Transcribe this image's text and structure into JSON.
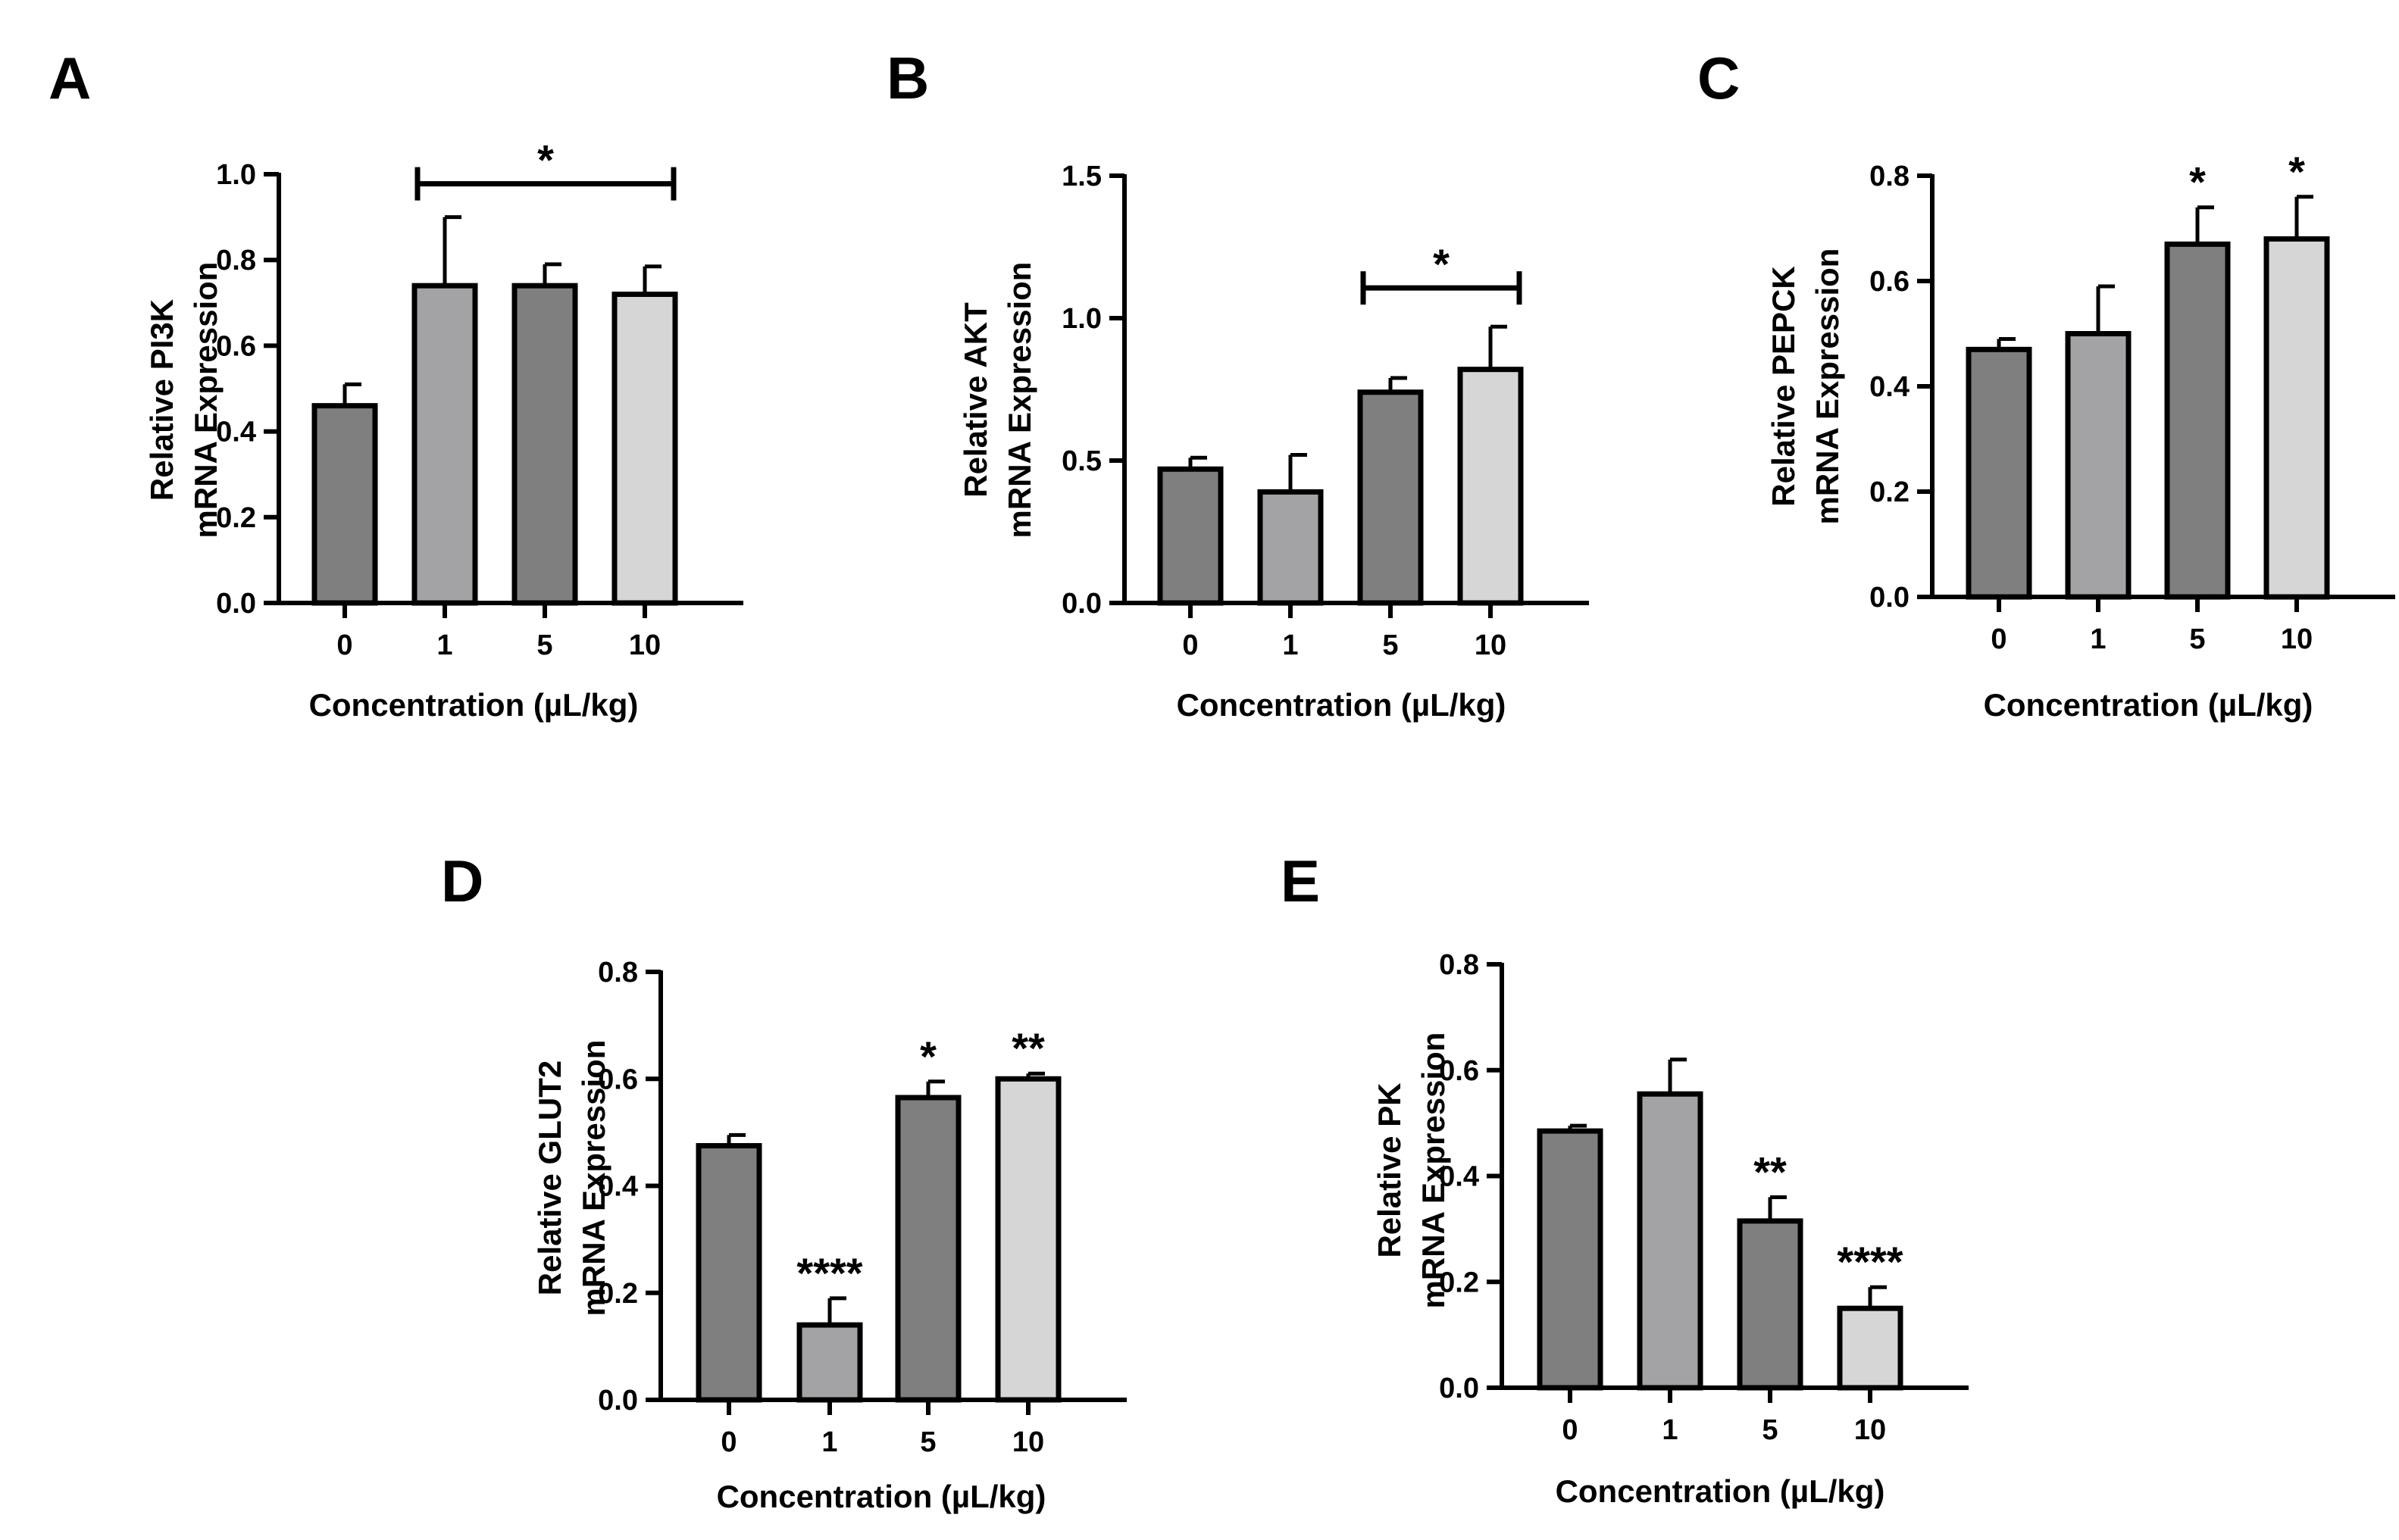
{
  "chart_data": [
    {
      "panel_label": "A",
      "type": "bar",
      "categories": [
        "0",
        "1",
        "5",
        "10"
      ],
      "values": [
        0.46,
        0.74,
        0.74,
        0.72
      ],
      "errors": [
        0.05,
        0.16,
        0.05,
        0.065
      ],
      "colors": [
        "#7f7f7f",
        "#a3a3a6",
        "#7f7f7f",
        "#d6d6d6"
      ],
      "ylabel_line1": "Relative PI3K",
      "ylabel_line2": "mRNA Expression",
      "xlabel": "Concentration (µL/kg)",
      "ylim": [
        0,
        1.0
      ],
      "yticks": [
        "0.0",
        "0.2",
        "0.4",
        "0.6",
        "0.8",
        "1.0"
      ],
      "significance": [
        {
          "type": "bracket",
          "from": 1,
          "to": 3,
          "y": 1.02,
          "label": "*"
        }
      ]
    },
    {
      "panel_label": "B",
      "type": "bar",
      "categories": [
        "0",
        "1",
        "5",
        "10"
      ],
      "values": [
        0.47,
        0.39,
        0.74,
        0.82
      ],
      "errors": [
        0.04,
        0.13,
        0.05,
        0.15
      ],
      "colors": [
        "#7f7f7f",
        "#a3a3a6",
        "#7f7f7f",
        "#d6d6d6"
      ],
      "ylabel_line1": "Relative AKT",
      "ylabel_line2": "mRNA Expression",
      "xlabel": "Concentration (µL/kg)",
      "ylim": [
        0,
        1.5
      ],
      "yticks": [
        "0.0",
        "0.5",
        "1.0",
        "1.5"
      ],
      "significance": [
        {
          "type": "bracket",
          "from": 2,
          "to": 3,
          "y": 1.17,
          "label": "*"
        }
      ]
    },
    {
      "panel_label": "C",
      "type": "bar",
      "categories": [
        "0",
        "1",
        "5",
        "10"
      ],
      "values": [
        0.47,
        0.5,
        0.67,
        0.68
      ],
      "errors": [
        0.02,
        0.09,
        0.07,
        0.08
      ],
      "colors": [
        "#7f7f7f",
        "#a3a3a6",
        "#7f7f7f",
        "#d6d6d6"
      ],
      "ylabel_line1": "Relative PEPCK",
      "ylabel_line2": "mRNA Expression",
      "xlabel": "Concentration (µL/kg)",
      "ylim": [
        0,
        0.8
      ],
      "yticks": [
        "0.0",
        "0.2",
        "0.4",
        "0.6",
        "0.8"
      ],
      "significance": [
        {
          "type": "star",
          "bar": 2,
          "label": "*"
        },
        {
          "type": "star",
          "bar": 3,
          "label": "*"
        }
      ]
    },
    {
      "panel_label": "D",
      "type": "bar",
      "categories": [
        "0",
        "1",
        "5",
        "10"
      ],
      "values": [
        0.475,
        0.14,
        0.565,
        0.6
      ],
      "errors": [
        0.02,
        0.05,
        0.03,
        0.01
      ],
      "colors": [
        "#7f7f7f",
        "#a3a3a6",
        "#7f7f7f",
        "#d6d6d6"
      ],
      "ylabel_line1": "Relative GLUT2",
      "ylabel_line2": "mRNA Expression",
      "xlabel": "Concentration (µL/kg)",
      "ylim": [
        0,
        0.8
      ],
      "yticks": [
        "0.0",
        "0.2",
        "0.4",
        "0.6",
        "0.8"
      ],
      "significance": [
        {
          "type": "star",
          "bar": 1,
          "label": "****"
        },
        {
          "type": "star",
          "bar": 2,
          "label": "*"
        },
        {
          "type": "star",
          "bar": 3,
          "label": "**"
        }
      ]
    },
    {
      "panel_label": "E",
      "type": "bar",
      "categories": [
        "0",
        "1",
        "5",
        "10"
      ],
      "values": [
        0.485,
        0.555,
        0.315,
        0.15
      ],
      "errors": [
        0.01,
        0.065,
        0.045,
        0.04
      ],
      "colors": [
        "#7f7f7f",
        "#a3a3a6",
        "#7f7f7f",
        "#d6d6d6"
      ],
      "ylabel_line1": "Relative PK",
      "ylabel_line2": "mRNA Expression",
      "xlabel": "Concentration (µL/kg)",
      "ylim": [
        0,
        0.8
      ],
      "yticks": [
        "0.0",
        "0.2",
        "0.4",
        "0.6",
        "0.8"
      ],
      "significance": [
        {
          "type": "star",
          "bar": 2,
          "label": "**"
        },
        {
          "type": "star",
          "bar": 3,
          "label": "****"
        }
      ]
    }
  ]
}
